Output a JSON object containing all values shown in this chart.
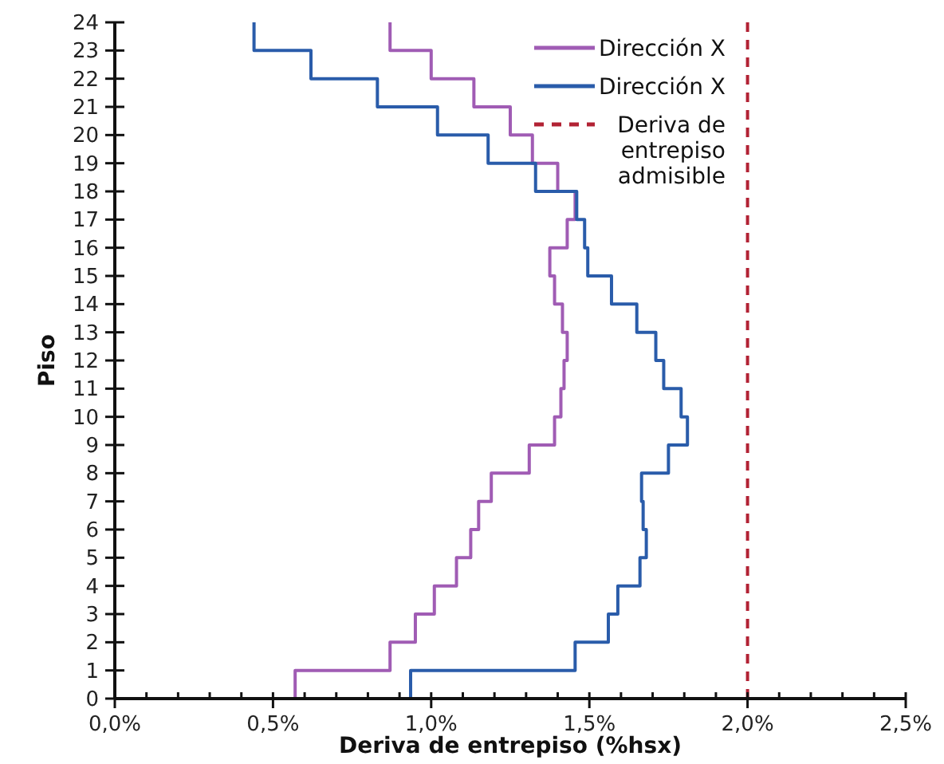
{
  "chart_data": {
    "type": "step",
    "orientation": "horizontal",
    "xlabel": "Deriva de entrepiso (%hsx)",
    "ylabel": "Piso",
    "x": [
      0,
      1,
      2,
      3,
      4,
      5,
      6,
      7,
      8,
      9,
      10,
      11,
      12,
      13,
      14,
      15,
      16,
      17,
      18,
      19,
      20,
      21,
      22,
      23,
      24
    ],
    "series": [
      {
        "name": "Dirección X",
        "color": "#a05cb4",
        "values": [
          0.57,
          0.57,
          0.87,
          0.95,
          1.01,
          1.08,
          1.125,
          1.15,
          1.19,
          1.31,
          1.39,
          1.41,
          1.42,
          1.43,
          1.415,
          1.39,
          1.375,
          1.43,
          1.455,
          1.4,
          1.32,
          1.25,
          1.135,
          1.0,
          0.87
        ]
      },
      {
        "name": "Dirección X",
        "color": "#2a5caa",
        "values": [
          0.935,
          0.935,
          1.455,
          1.56,
          1.59,
          1.66,
          1.68,
          1.67,
          1.665,
          1.75,
          1.81,
          1.79,
          1.735,
          1.71,
          1.65,
          1.57,
          1.495,
          1.485,
          1.46,
          1.33,
          1.18,
          1.02,
          0.83,
          0.62,
          0.44
        ]
      }
    ],
    "xlim": [
      0,
      2.5
    ],
    "xticks": [
      {
        "value": 0,
        "label": "0,0%"
      },
      {
        "value": 0.1,
        "label": null
      },
      {
        "value": 0.2,
        "label": null
      },
      {
        "value": 0.3,
        "label": null
      },
      {
        "value": 0.4,
        "label": null
      },
      {
        "value": 0.5,
        "label": "0,5%"
      },
      {
        "value": 0.6,
        "label": null
      },
      {
        "value": 0.7,
        "label": null
      },
      {
        "value": 0.8,
        "label": null
      },
      {
        "value": 0.9,
        "label": null
      },
      {
        "value": 1.0,
        "label": "1,0%"
      },
      {
        "value": 1.1,
        "label": null
      },
      {
        "value": 1.2,
        "label": null
      },
      {
        "value": 1.3,
        "label": null
      },
      {
        "value": 1.4,
        "label": null
      },
      {
        "value": 1.5,
        "label": "1,5%"
      },
      {
        "value": 1.6,
        "label": null
      },
      {
        "value": 1.7,
        "label": null
      },
      {
        "value": 1.8,
        "label": null
      },
      {
        "value": 1.9,
        "label": null
      },
      {
        "value": 2.0,
        "label": "2,0%"
      },
      {
        "value": 2.1,
        "label": null
      },
      {
        "value": 2.2,
        "label": null
      },
      {
        "value": 2.3,
        "label": null
      },
      {
        "value": 2.4,
        "label": null
      },
      {
        "value": 2.5,
        "label": "2,5%"
      }
    ],
    "ylim": [
      0,
      24
    ],
    "yticks": [
      0,
      1,
      2,
      3,
      4,
      5,
      6,
      7,
      8,
      9,
      10,
      11,
      12,
      13,
      14,
      15,
      16,
      17,
      18,
      19,
      20,
      21,
      22,
      23,
      24
    ],
    "ref_lines": [
      {
        "axis": "x",
        "value": 2.0,
        "label": "Deriva de entrepiso admisible",
        "color": "#b22234",
        "line_style": "dashed"
      }
    ],
    "legend": "top right",
    "grid": false
  }
}
